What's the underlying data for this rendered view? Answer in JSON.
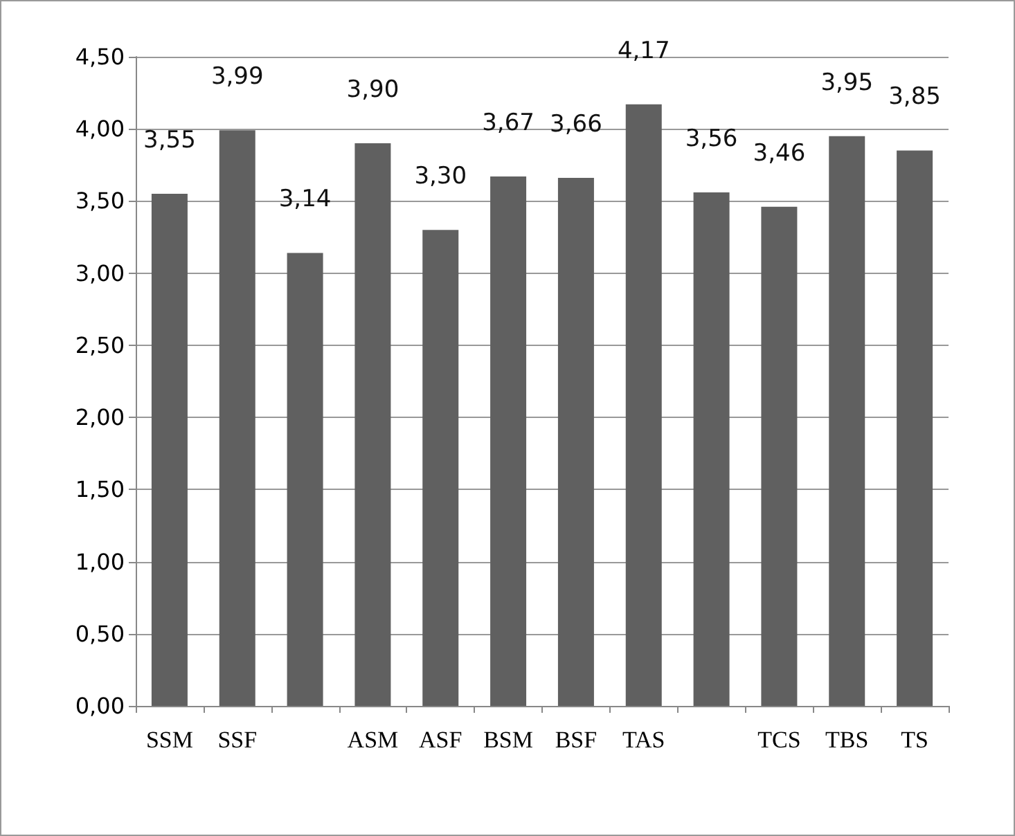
{
  "chart_data": {
    "type": "bar",
    "categories": [
      "SSM",
      "SSF",
      null,
      "ASM",
      "ASF",
      "BSM",
      "BSF",
      "TAS",
      null,
      "TCS",
      "TBS",
      "TS"
    ],
    "values": [
      3.55,
      3.99,
      3.14,
      3.9,
      3.3,
      3.67,
      3.66,
      4.17,
      3.56,
      3.46,
      3.95,
      3.85
    ],
    "value_labels": [
      "3,55",
      "3,99",
      "3,14",
      "3,90",
      "3,30",
      "3,67",
      "3,66",
      "4,17",
      "3,56",
      "3,46",
      "3,95",
      "3,85"
    ],
    "color": "#606060",
    "ylim": [
      0,
      4.5
    ],
    "yticks": [
      {
        "value": 0,
        "label": "0,00"
      },
      {
        "value": 0.5,
        "label": "0,50"
      },
      {
        "value": 1,
        "label": "1,00"
      },
      {
        "value": 1.5,
        "label": "1,50"
      },
      {
        "value": 2,
        "label": "2,00"
      },
      {
        "value": 2.5,
        "label": "2,50"
      },
      {
        "value": 3,
        "label": "3,00"
      },
      {
        "value": 3.5,
        "label": "3,50"
      },
      {
        "value": 4,
        "label": "4,00"
      },
      {
        "value": 4.5,
        "label": "4,50"
      }
    ],
    "grid": "y"
  }
}
